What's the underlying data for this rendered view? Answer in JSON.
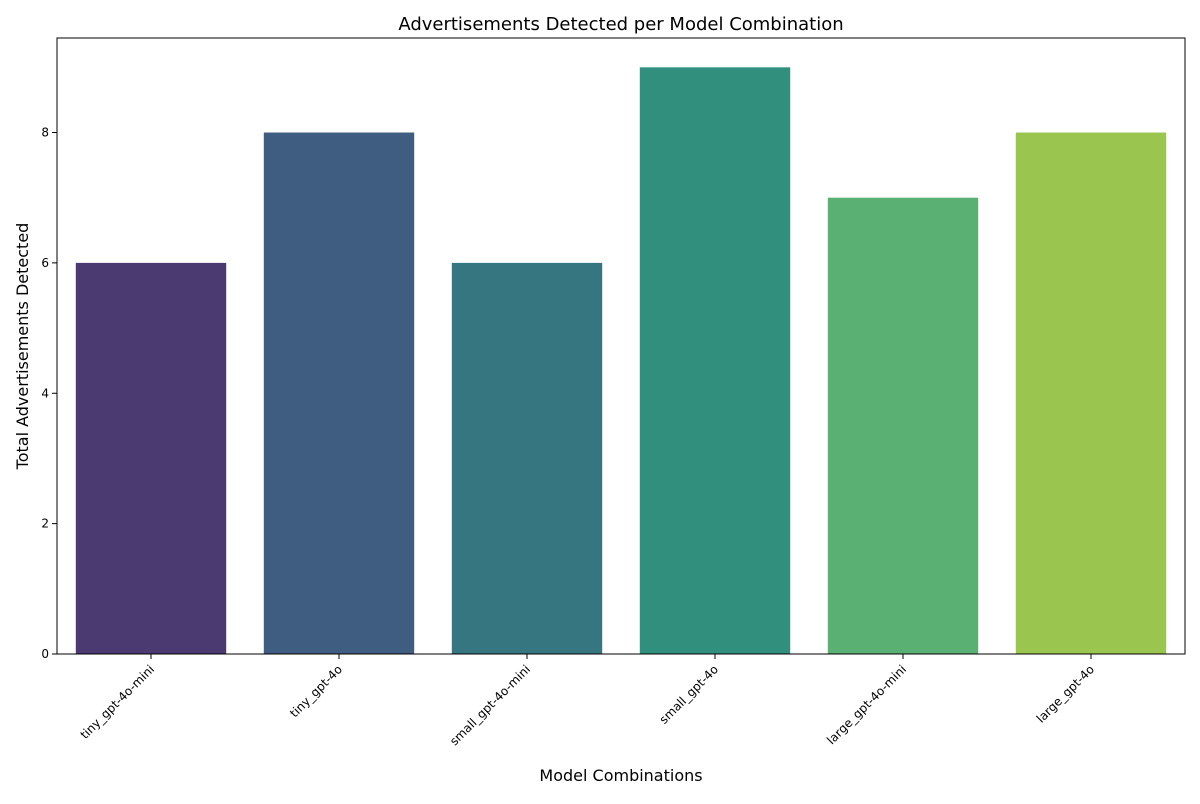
{
  "chart_data": {
    "type": "bar",
    "title": "Advertisements Detected per Model Combination",
    "xlabel": "Model Combinations",
    "ylabel": "Total Advertisements Detected",
    "categories": [
      "tiny_gpt-4o-mini",
      "tiny_gpt-4o",
      "small_gpt-4o-mini",
      "small_gpt-4o",
      "large_gpt-4o-mini",
      "large_gpt-4o"
    ],
    "values": [
      6,
      8,
      6,
      9,
      7,
      8
    ],
    "colors": [
      "#4a3a71",
      "#3f5d80",
      "#357680",
      "#31907d",
      "#59b072",
      "#9ac54f"
    ],
    "ylim": [
      0,
      9.45
    ],
    "yticks": [
      0,
      2,
      4,
      6,
      8
    ],
    "grid": false,
    "legend": "none"
  }
}
